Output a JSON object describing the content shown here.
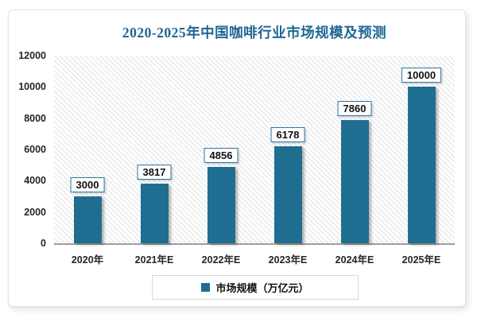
{
  "card": {
    "title": "2020-2025年中国咖啡行业市场规模及预测"
  },
  "chart_data": {
    "type": "bar",
    "title": "2020-2025年中国咖啡行业市场规模及预测",
    "categories": [
      "2020年",
      "2021年E",
      "2022年E",
      "2023年E",
      "2024年E",
      "2025年E"
    ],
    "values": [
      3000,
      3817,
      4856,
      6178,
      7860,
      10000
    ],
    "data_labels": [
      "3000",
      "3817",
      "4856",
      "6178",
      "7860",
      "10000"
    ],
    "xlabel": "",
    "ylabel": "",
    "ylim": [
      0,
      12000
    ],
    "yticks": [
      0,
      2000,
      4000,
      6000,
      8000,
      10000,
      12000
    ],
    "grid": false,
    "legend_entries": [
      "市场规模（万亿元）"
    ],
    "legend_position": "bottom-center"
  },
  "legend": {
    "label": "市场规模（万亿元）",
    "marker": "square-icon"
  },
  "colors": {
    "bar": "#1F6E91",
    "title_text": "#1F6693",
    "value_label_border": "#2E75A0",
    "axis_text": "#262626",
    "axis_line": "#9F9F9F",
    "legend_border": "#D9D9D9",
    "plot_hatch": "#E9E9E9",
    "card_border": "#E3E3E3"
  }
}
